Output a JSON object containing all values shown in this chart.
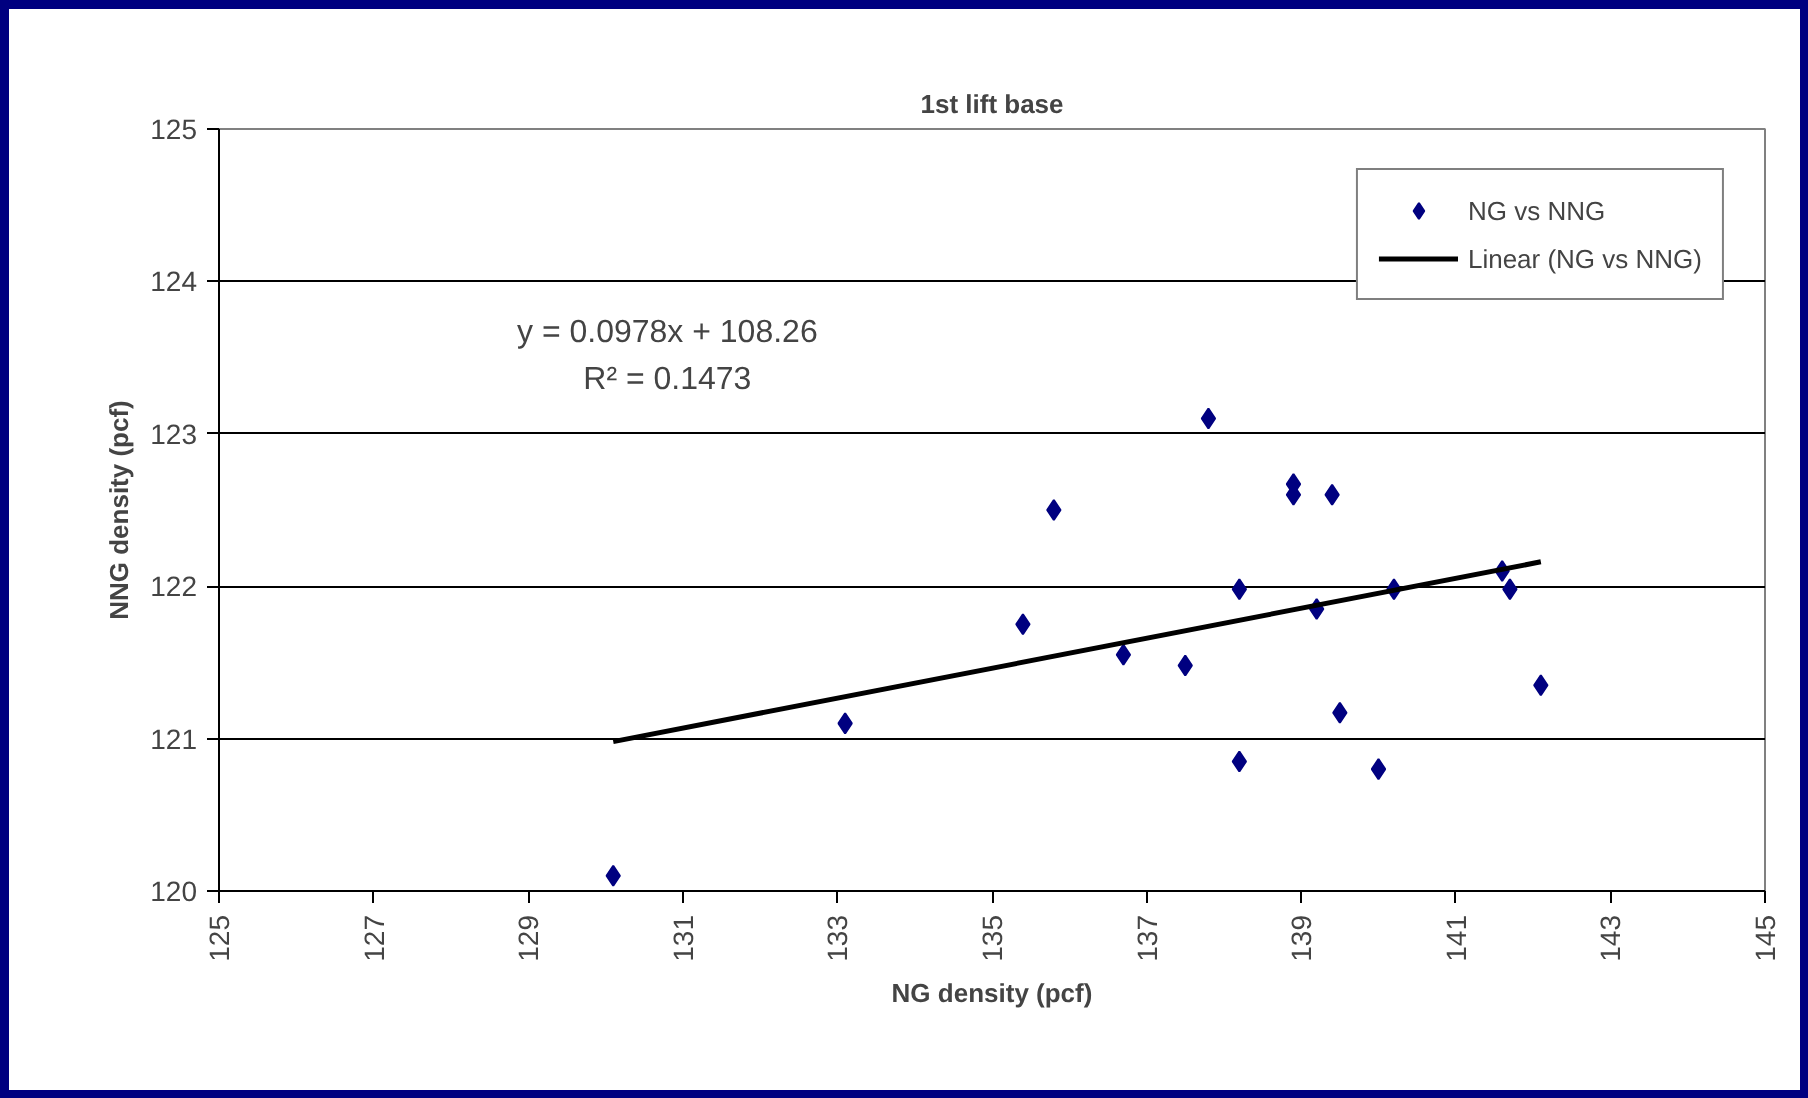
{
  "chart_data": {
    "type": "scatter",
    "title": "1st lift base",
    "xlabel": "NG density (pcf)",
    "ylabel": "NNG density (pcf)",
    "series": [
      {
        "name": "NG vs NNG",
        "color": "#000080",
        "marker": "diamond",
        "x": [
          130.1,
          133.1,
          135.4,
          135.8,
          136.7,
          137.5,
          137.8,
          138.2,
          138.2,
          138.9,
          138.9,
          139.4,
          139.2,
          139.5,
          140.0,
          140.2,
          141.6,
          141.7,
          142.1
        ],
        "values": [
          120.1,
          121.1,
          121.75,
          122.5,
          121.55,
          121.48,
          123.1,
          121.98,
          120.85,
          122.67,
          122.6,
          122.6,
          121.85,
          121.17,
          120.8,
          121.98,
          122.1,
          121.98,
          121.35
        ]
      },
      {
        "name": "Linear (NG vs NNG)",
        "type": "line",
        "color": "#000000",
        "line_style": "solid",
        "x": [
          130.1,
          142.1
        ],
        "values": [
          120.98,
          122.16
        ]
      }
    ],
    "xlim": [
      125,
      145
    ],
    "xticks": [
      125,
      127,
      129,
      131,
      133,
      135,
      137,
      139,
      141,
      143,
      145
    ],
    "ylim": [
      120,
      125
    ],
    "yticks": [
      120,
      121,
      122,
      123,
      124,
      125
    ],
    "grid": "y",
    "legend": "top right",
    "annotations": [
      "y = 0.0978x + 108.26",
      "R² = 0.1473"
    ]
  }
}
